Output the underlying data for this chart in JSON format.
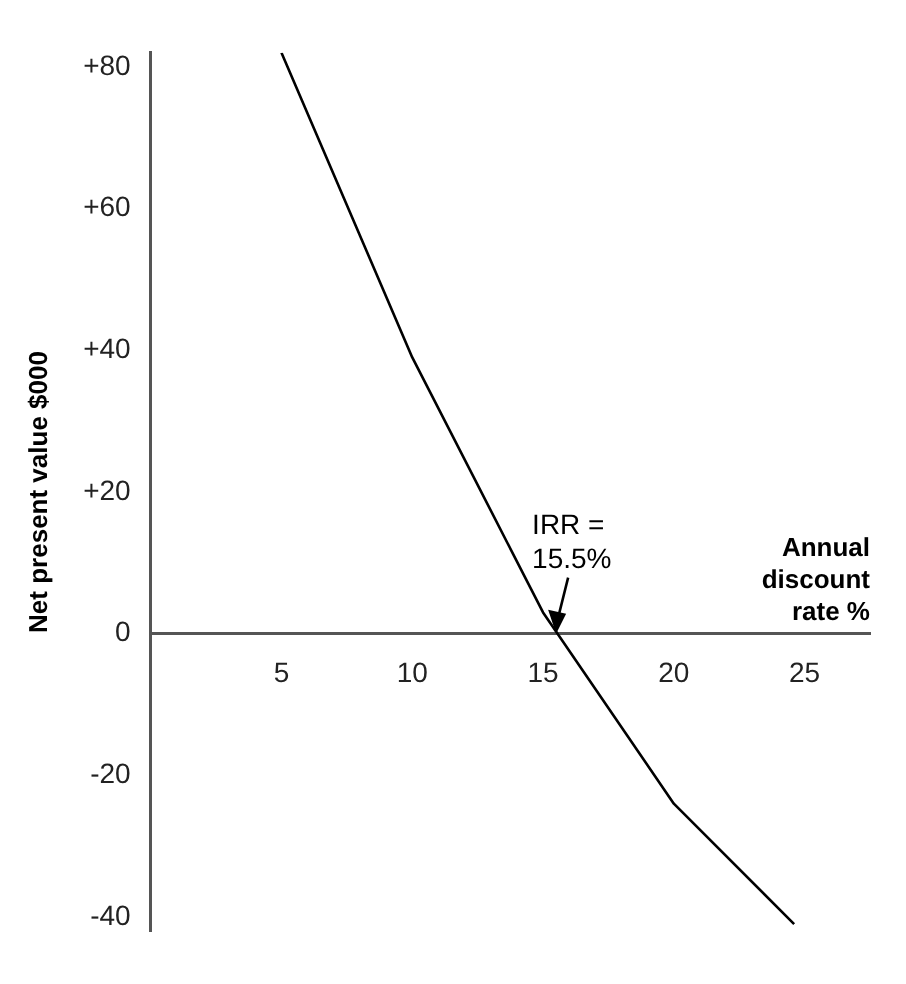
{
  "chart_data": {
    "type": "line",
    "xlabel": "Annual discount rate %",
    "ylabel": "Net present value $000",
    "x": [
      5,
      10,
      15,
      20,
      24.6
    ],
    "series": [
      {
        "color": "#000000",
        "values": [
          82,
          39,
          3,
          -24,
          -41
        ]
      }
    ],
    "xlim": [
      0,
      27.5
    ],
    "xticks": [
      5,
      10,
      15,
      20,
      25
    ],
    "ylim": [
      -42,
      82
    ],
    "yticks": [
      {
        "value": 80,
        "label": "+80"
      },
      {
        "value": 60,
        "label": "+60"
      },
      {
        "value": 40,
        "label": "+40"
      },
      {
        "value": 20,
        "label": "+20"
      },
      0,
      -20,
      -40
    ],
    "annotations": [
      {
        "text": "IRR =\n15.5%",
        "x": 15.5,
        "y": 0
      }
    ],
    "grid": false,
    "legend": false,
    "marker": "none",
    "line_style": "solid"
  }
}
